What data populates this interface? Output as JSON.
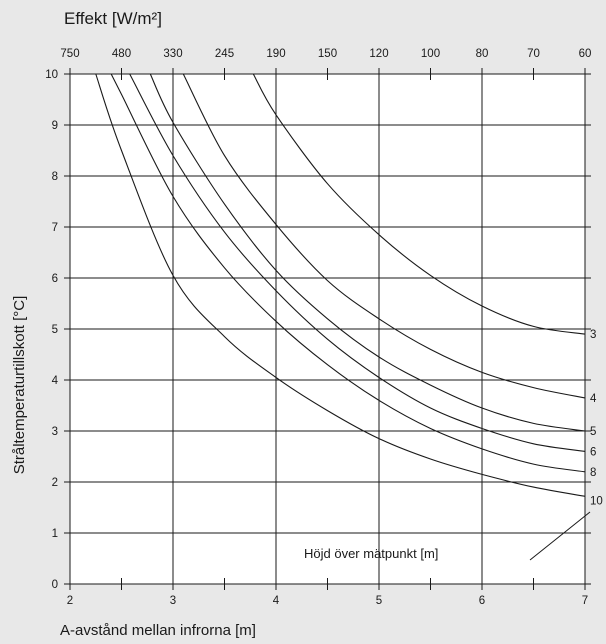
{
  "chart_data": {
    "type": "line",
    "title": "",
    "top_axis_label": "Effekt [W/m²]",
    "xlabel": "A-avstånd mellan infrorna [m]",
    "ylabel": "Stråltemperaturtillskott [°C]",
    "xlim": [
      2,
      7
    ],
    "ylim": [
      0,
      10
    ],
    "x_ticks": [
      "2",
      "3",
      "4",
      "5",
      "6",
      "7"
    ],
    "y_ticks": [
      "0",
      "1",
      "2",
      "3",
      "4",
      "5",
      "6",
      "7",
      "8",
      "9",
      "10"
    ],
    "top_tick_positions": [
      2,
      2.5,
      3,
      3.5,
      4,
      4.5,
      5,
      5.5,
      6,
      6.5,
      7
    ],
    "top_ticks": [
      "750",
      "480",
      "330",
      "245",
      "190",
      "150",
      "120",
      "100",
      "80",
      "70",
      "60"
    ],
    "grid": true,
    "annotation": "Höjd över mätpunkt [m]",
    "series": [
      {
        "name": "3",
        "x": [
          3.78,
          4.0,
          4.5,
          5.0,
          5.5,
          6.0,
          6.5,
          7.0
        ],
        "y": [
          10.0,
          9.2,
          7.85,
          6.85,
          6.05,
          5.45,
          5.05,
          4.9
        ]
      },
      {
        "name": "4",
        "x": [
          3.1,
          3.5,
          4.0,
          4.5,
          5.0,
          5.5,
          6.0,
          6.5,
          7.0
        ],
        "y": [
          10.0,
          8.4,
          7.05,
          5.95,
          5.2,
          4.6,
          4.15,
          3.85,
          3.65
        ]
      },
      {
        "name": "5",
        "x": [
          2.78,
          3.0,
          3.5,
          4.0,
          4.5,
          5.0,
          5.5,
          6.0,
          6.5,
          7.0
        ],
        "y": [
          10.0,
          9.05,
          7.45,
          6.15,
          5.2,
          4.45,
          3.9,
          3.45,
          3.15,
          3.0
        ]
      },
      {
        "name": "6",
        "x": [
          2.58,
          3.0,
          3.5,
          4.0,
          4.5,
          5.0,
          5.5,
          6.0,
          6.5,
          7.0
        ],
        "y": [
          10.0,
          8.4,
          6.9,
          5.75,
          4.8,
          4.05,
          3.45,
          3.05,
          2.75,
          2.6
        ]
      },
      {
        "name": "8",
        "x": [
          2.4,
          2.5,
          3.0,
          3.5,
          4.0,
          4.5,
          5.0,
          5.5,
          6.0,
          6.5,
          7.0
        ],
        "y": [
          10.0,
          9.6,
          7.6,
          6.2,
          5.15,
          4.3,
          3.6,
          3.05,
          2.65,
          2.35,
          2.2
        ]
      },
      {
        "name": "10",
        "x": [
          2.25,
          2.5,
          3.0,
          3.5,
          4.0,
          4.5,
          5.0,
          5.5,
          6.0,
          6.5,
          7.0
        ],
        "y": [
          10.0,
          8.5,
          6.05,
          4.85,
          4.05,
          3.4,
          2.85,
          2.45,
          2.15,
          1.9,
          1.72
        ]
      }
    ]
  }
}
